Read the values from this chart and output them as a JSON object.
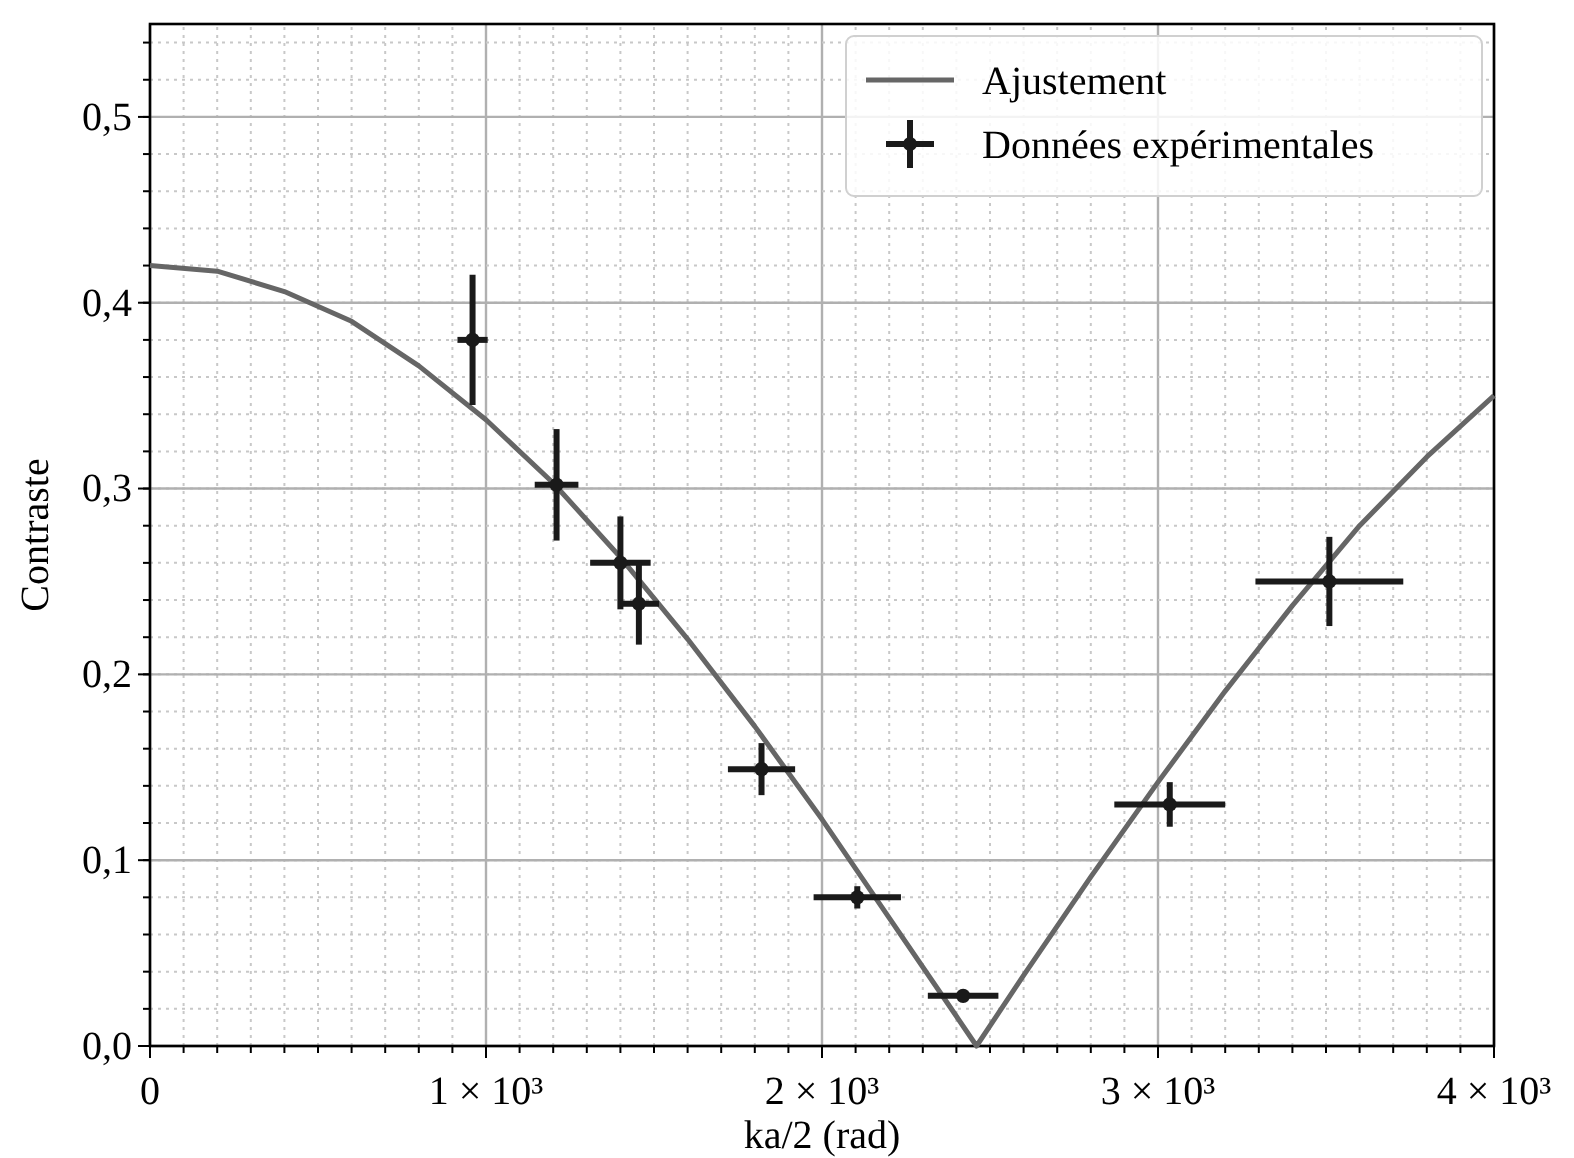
{
  "chart_data": {
    "type": "scatter",
    "xlabel": "ka/2 (rad)",
    "ylabel": "Contraste",
    "xlim": [
      0,
      4000
    ],
    "ylim": [
      0,
      0.55
    ],
    "xticks": [
      0,
      {
        "value": 1000,
        "label": "1 × 10³"
      },
      {
        "value": 2000,
        "label": "2 × 10³"
      },
      {
        "value": 3000,
        "label": "3 × 10³"
      },
      {
        "value": 4000,
        "label": "4 × 10³"
      }
    ],
    "yticks": [
      {
        "value": 0,
        "label": "0,0"
      },
      {
        "value": 0.1,
        "label": "0,1"
      },
      {
        "value": 0.2,
        "label": "0,2"
      },
      {
        "value": 0.3,
        "label": "0,3"
      },
      {
        "value": 0.4,
        "label": "0,4"
      },
      {
        "value": 0.5,
        "label": "0,5"
      }
    ],
    "grid": true,
    "legend": "top right",
    "series": [
      {
        "name": "Ajustement",
        "type": "line",
        "color": "#666666",
        "x": [
          0,
          200,
          400,
          600,
          800,
          1000,
          1200,
          1400,
          1600,
          1800,
          2000,
          2200,
          2400,
          2460,
          2600,
          2800,
          3000,
          3200,
          3400,
          3600,
          3800,
          4000
        ],
        "values": [
          0.42,
          0.417,
          0.406,
          0.39,
          0.366,
          0.337,
          0.303,
          0.263,
          0.219,
          0.172,
          0.122,
          0.069,
          0.016,
          0,
          0.038,
          0.091,
          0.142,
          0.191,
          0.237,
          0.28,
          0.317,
          0.35
        ]
      },
      {
        "name": "Données expérimentales",
        "marker": "circle",
        "color": "#1a1a1a",
        "x": [
          960,
          1210,
          1400,
          1455,
          1820,
          2105,
          2420,
          3035,
          3510
        ],
        "values": [
          0.38,
          0.302,
          0.26,
          0.238,
          0.149,
          0.08,
          0.027,
          0.13,
          0.25
        ],
        "errors": [
          0.035,
          0.03,
          0.025,
          0.022,
          0.014,
          0.006,
          0.003,
          0.012,
          0.024
        ],
        "xerrors": [
          45,
          65,
          90,
          60,
          100,
          130,
          105,
          165,
          220
        ]
      }
    ]
  }
}
